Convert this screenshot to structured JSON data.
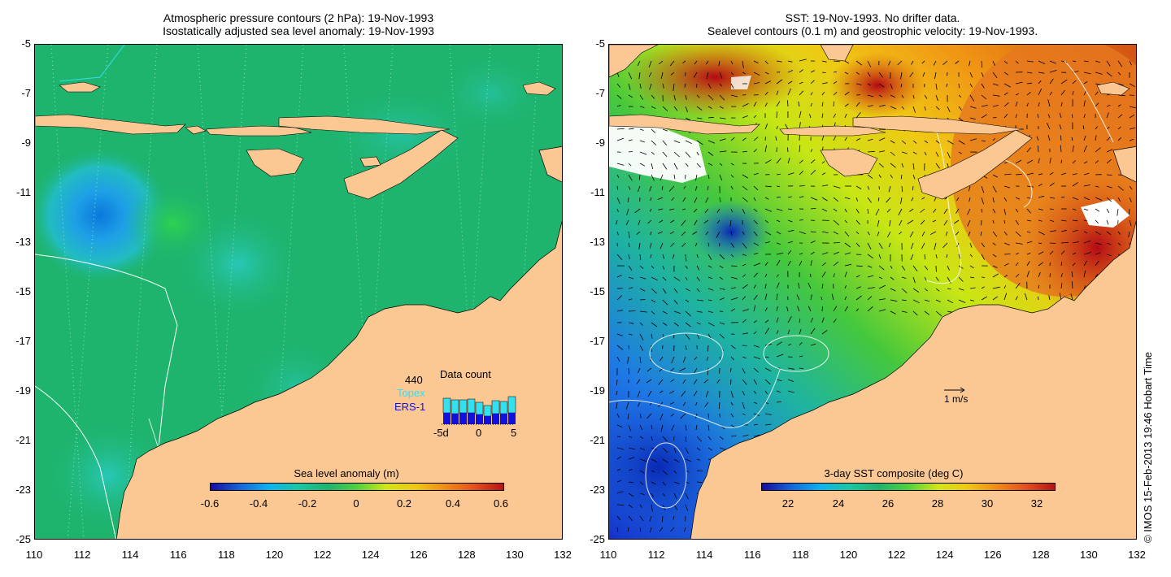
{
  "left_panel": {
    "title_line1": "Atmospheric pressure contours (2 hPa): 19-Nov-1993",
    "title_line2": "Isostatically adjusted sea level anomaly: 19-Nov-1993",
    "colorbar_title": "Sea level anomaly (m)",
    "colorbar_ticks": [
      "-0.6",
      "-0.4",
      "-0.2",
      "0",
      "0.2",
      "0.4",
      "0.6"
    ],
    "data_count": {
      "title": "Data count",
      "max_label": "440",
      "series_topex": "Topex",
      "series_ers": "ERS-1",
      "x_ticks": [
        "-5d",
        "0",
        "5"
      ],
      "topex_color": "#33e0f0",
      "ers_color": "#1010e0"
    }
  },
  "right_panel": {
    "title_line1": "SST: 19-Nov-1993. No drifter data.",
    "title_line2": "Sealevel contours (0.1 m) and geostrophic velocity: 19-Nov-1993.",
    "colorbar_title": "3-day SST composite (deg C)",
    "colorbar_ticks": [
      "22",
      "24",
      "26",
      "28",
      "30",
      "32"
    ],
    "velocity_scale_label": "1 m/s"
  },
  "axes": {
    "y_ticks": [
      "-5",
      "-7",
      "-9",
      "-11",
      "-13",
      "-15",
      "-17",
      "-19",
      "-21",
      "-23",
      "-25"
    ],
    "x_ticks": [
      "110",
      "112",
      "114",
      "116",
      "118",
      "120",
      "122",
      "124",
      "126",
      "128",
      "130",
      "132"
    ]
  },
  "credit": "© IMOS 15-Feb-2013 19:46 Hobart Time",
  "colors": {
    "land": "#fbc894",
    "ocean_green": "#1eb46e",
    "anomaly_low": "#00b4e6",
    "sst_warm": "#f09614",
    "sst_hot": "#b40a14",
    "sst_cool": "#1e78e6"
  }
}
